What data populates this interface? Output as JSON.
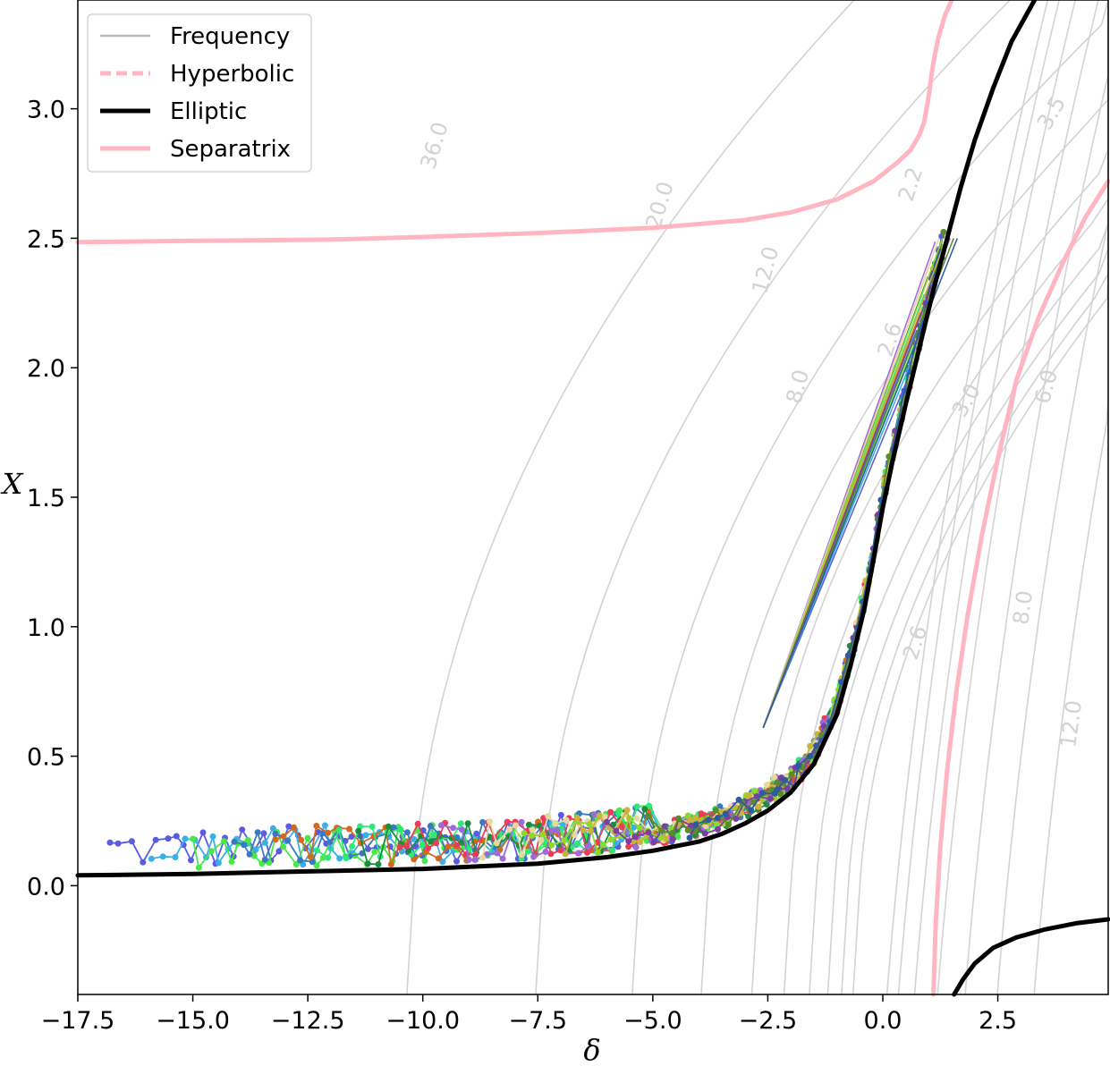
{
  "chart_data": {
    "type": "line",
    "xlabel": "δ",
    "ylabel": "X",
    "xlim": [
      -17.5,
      4.9
    ],
    "ylim": [
      -0.42,
      3.42
    ],
    "grid": false,
    "legend_position": "top-left",
    "x_ticks": [
      -17.5,
      -15.0,
      -12.5,
      -10.0,
      -7.5,
      -5.0,
      -2.5,
      0.0,
      2.5
    ],
    "x_tick_labels": [
      "−17.5",
      "−15.0",
      "−12.5",
      "−10.0",
      "−7.5",
      "−5.0",
      "−2.5",
      "0.0",
      "2.5"
    ],
    "y_ticks": [
      0.0,
      0.5,
      1.0,
      1.5,
      2.0,
      2.5,
      3.0
    ],
    "y_tick_labels": [
      "0.0",
      "0.5",
      "1.0",
      "1.5",
      "2.0",
      "2.5",
      "3.0"
    ],
    "legend": [
      {
        "label": "Frequency",
        "color": "#bbbbbb",
        "style": "solid"
      },
      {
        "label": "Hyperbolic",
        "color": "#ffb6c1",
        "style": "dashed"
      },
      {
        "label": "Elliptic",
        "color": "#000000",
        "style": "solid"
      },
      {
        "label": "Separatrix",
        "color": "#ffb6c1",
        "style": "solid"
      }
    ],
    "contour_labels": [
      {
        "text": "36.0",
        "x": -9.6,
        "y": 2.85,
        "angle": -73
      },
      {
        "text": "20.0",
        "x": -4.7,
        "y": 2.62,
        "angle": -73
      },
      {
        "text": "12.0",
        "x": -2.4,
        "y": 2.37,
        "angle": -75
      },
      {
        "text": "8.0",
        "x": -1.7,
        "y": 1.92,
        "angle": -75
      },
      {
        "text": "2.2",
        "x": 0.75,
        "y": 2.7,
        "angle": -72
      },
      {
        "text": "2.6",
        "x": 0.3,
        "y": 2.1,
        "angle": -72
      },
      {
        "text": "3.0",
        "x": 1.95,
        "y": 1.86,
        "angle": -60
      },
      {
        "text": "3.5",
        "x": 3.8,
        "y": 2.97,
        "angle": -60
      },
      {
        "text": "6.0",
        "x": 3.7,
        "y": 1.92,
        "angle": -75
      },
      {
        "text": "2.6",
        "x": 0.85,
        "y": 0.93,
        "angle": -72
      },
      {
        "text": "8.0",
        "x": 3.2,
        "y": 1.07,
        "angle": -82
      },
      {
        "text": "12.0",
        "x": 4.25,
        "y": 0.62,
        "angle": -82
      }
    ],
    "series": [
      {
        "name": "Elliptic",
        "color": "#000000",
        "style": "solid",
        "x": [
          -17.5,
          -15,
          -12.5,
          -10,
          -7.5,
          -6,
          -5,
          -4,
          -3.5,
          -3,
          -2.5,
          -2,
          -1.5,
          -1,
          -0.7,
          -0.4,
          -0.2,
          0,
          0.2,
          0.5,
          0.8,
          1.1,
          1.4,
          1.7,
          2.0,
          2.4,
          2.8,
          3.3
        ],
        "y": [
          0.04,
          0.045,
          0.055,
          0.065,
          0.085,
          0.11,
          0.135,
          0.17,
          0.2,
          0.24,
          0.29,
          0.36,
          0.47,
          0.66,
          0.85,
          1.07,
          1.26,
          1.46,
          1.63,
          1.86,
          2.08,
          2.3,
          2.5,
          2.7,
          2.88,
          3.08,
          3.26,
          3.44
        ]
      },
      {
        "name": "Elliptic (lower branch)",
        "color": "#000000",
        "style": "solid",
        "x": [
          1.55,
          1.75,
          2.0,
          2.4,
          2.9,
          3.5,
          4.2,
          4.9
        ],
        "y": [
          -0.42,
          -0.36,
          -0.3,
          -0.24,
          -0.2,
          -0.17,
          -0.145,
          -0.13
        ]
      },
      {
        "name": "Separatrix (upper)",
        "color": "#ffb6c1",
        "style": "solid",
        "x": [
          -17.5,
          -15,
          -12,
          -10,
          -7.5,
          -5,
          -3,
          -2,
          -1,
          -0.2,
          0.3,
          0.6,
          0.8,
          0.9,
          1.0,
          1.05,
          1.1,
          1.2,
          1.35,
          1.5
        ],
        "y": [
          2.485,
          2.49,
          2.495,
          2.505,
          2.52,
          2.54,
          2.57,
          2.6,
          2.65,
          2.72,
          2.79,
          2.84,
          2.9,
          2.95,
          3.05,
          3.12,
          3.18,
          3.27,
          3.36,
          3.42
        ]
      },
      {
        "name": "Separatrix (right)",
        "color": "#ffb6c1",
        "style": "solid",
        "x": [
          1.1,
          1.15,
          1.25,
          1.4,
          1.6,
          1.85,
          2.15,
          2.5,
          2.9,
          3.4,
          3.9,
          4.4,
          4.9
        ],
        "y": [
          -0.42,
          -0.15,
          0.15,
          0.45,
          0.75,
          1.05,
          1.35,
          1.65,
          1.95,
          2.2,
          2.4,
          2.58,
          2.72
        ]
      }
    ],
    "trajectory_colors": [
      "#5b5be0",
      "#3ab0e8",
      "#48e848",
      "#3c78c0",
      "#d2691e",
      "#2ee878",
      "#1e8c3c",
      "#e83c5a",
      "#9b6bd8",
      "#e8d8a0",
      "#8fd82e",
      "#c8b43c",
      "#7a40a0",
      "#5a8a2e",
      "#2e5aa0"
    ]
  }
}
